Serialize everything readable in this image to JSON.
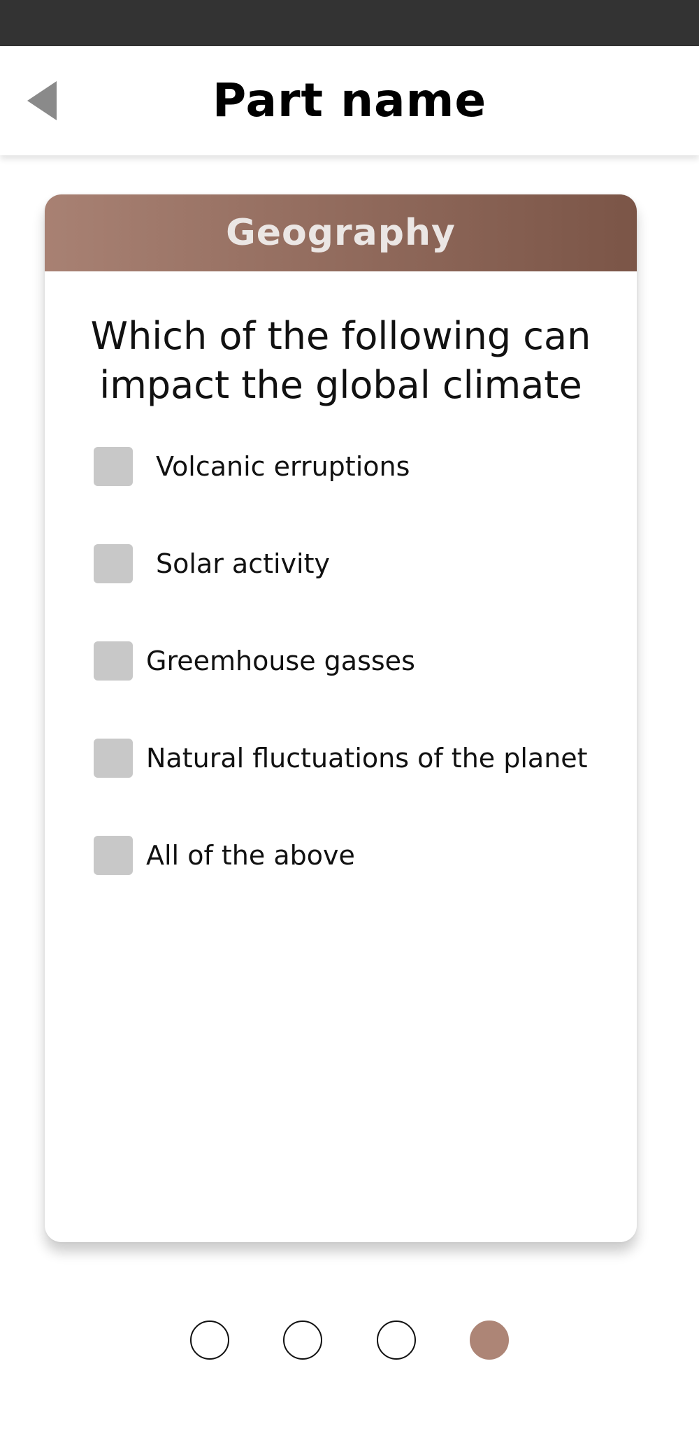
{
  "header": {
    "title": "Part name",
    "back_icon": "back-arrow-icon"
  },
  "card": {
    "subject": "Geography",
    "question": "Which of the following can impact the global climate",
    "options": [
      {
        "label": "Volcanic erruptions",
        "checked": false
      },
      {
        "label": "Solar activity",
        "checked": false
      },
      {
        "label": "Greemhouse gasses",
        "checked": false
      },
      {
        "label": "Natural fluctuations of the planet",
        "checked": false
      },
      {
        "label": "All of the above",
        "checked": false
      }
    ]
  },
  "pager": {
    "total": 4,
    "current": 4
  },
  "colors": {
    "status_bar": "#333333",
    "header_gradient_start": "#a88173",
    "header_gradient_end": "#7b5547",
    "active_dot": "#ad8576",
    "checkbox": "#c8c8c8"
  }
}
